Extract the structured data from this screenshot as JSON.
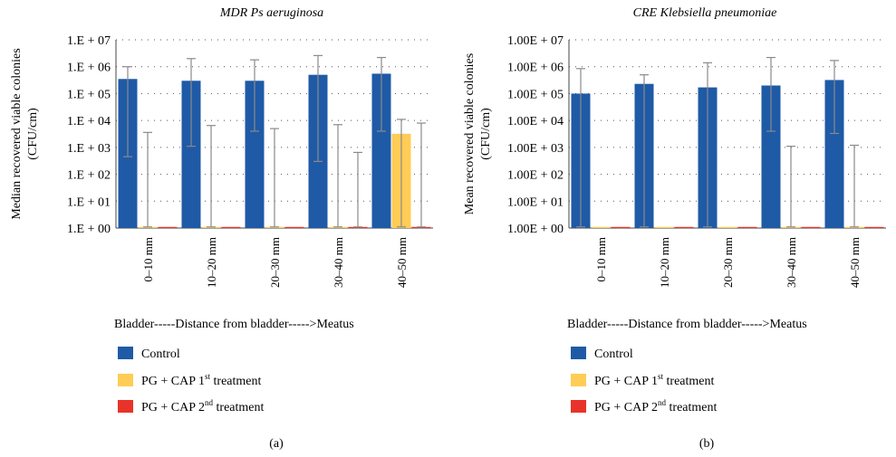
{
  "colors": {
    "control": "#1f5aa6",
    "first": "#ffcc55",
    "second": "#e8332a"
  },
  "legend": {
    "control": "Control",
    "first": {
      "text": "PG + CAP 1",
      "sup": "st",
      "suffix": " treatment"
    },
    "second": {
      "text": "PG + CAP 2",
      "sup": "nd",
      "suffix": " treatment"
    }
  },
  "chart_data": [
    {
      "type": "bar",
      "panel_label": "(a)",
      "title": "MDR Ps aeruginosa",
      "ylabel": [
        "Median recovered viable colonies",
        "(CFU/cm)"
      ],
      "xlabel": "Bladder-----Distance from bladder----->Meatus",
      "y_scale": "log",
      "ylim": [
        1,
        10000000
      ],
      "y_ticks": [
        {
          "value": 1,
          "label": "1.E + 00"
        },
        {
          "value": 10,
          "label": "1.E + 01"
        },
        {
          "value": 100,
          "label": "1.E + 02"
        },
        {
          "value": 1000,
          "label": "1.E + 03"
        },
        {
          "value": 10000,
          "label": "1.E + 04"
        },
        {
          "value": 100000,
          "label": "1.E + 05"
        },
        {
          "value": 1000000,
          "label": "1.E + 06"
        },
        {
          "value": 10000000,
          "label": "1.E + 07"
        }
      ],
      "grid": true,
      "categories": [
        "0–10 mm",
        "10–20 mm",
        "20–30 mm",
        "30–40 mm",
        "40–50 mm"
      ],
      "series": [
        {
          "key": "control",
          "values": [
            350000,
            300000,
            300000,
            500000,
            550000
          ],
          "err_low": [
            450,
            1100,
            4000,
            300,
            4000
          ],
          "err_high": [
            1000000,
            2000000,
            1800000,
            2600000,
            2200000
          ]
        },
        {
          "key": "first",
          "values": [
            1.1,
            1.1,
            1.1,
            1.1,
            3200
          ],
          "err_low": [
            1.1,
            1.1,
            1.1,
            1.1,
            1.1
          ],
          "err_high": [
            3600,
            6500,
            5000,
            7000,
            11000
          ]
        },
        {
          "key": "second",
          "values": [
            1.1,
            1.1,
            1.1,
            1.1,
            1.1
          ],
          "err_low": [
            1.1,
            1.1,
            1.1,
            1.1,
            1.1
          ],
          "err_high": [
            1.1,
            1.1,
            1.1,
            650,
            8000
          ]
        }
      ]
    },
    {
      "type": "bar",
      "panel_label": "(b)",
      "title": "CRE Klebsiella pneumoniae",
      "ylabel": [
        "Mean recovered viable colonies",
        "(CFU/cm)"
      ],
      "xlabel": "Bladder-----Distance from bladder----->Meatus",
      "y_scale": "log",
      "ylim": [
        1,
        10000000
      ],
      "y_ticks": [
        {
          "value": 1,
          "label": "1.00E + 00"
        },
        {
          "value": 10,
          "label": "1.00E + 01"
        },
        {
          "value": 100,
          "label": "1.00E + 02"
        },
        {
          "value": 1000,
          "label": "1.00E + 03"
        },
        {
          "value": 10000,
          "label": "1.00E + 04"
        },
        {
          "value": 100000,
          "label": "1.00E + 05"
        },
        {
          "value": 1000000,
          "label": "1.00E + 06"
        },
        {
          "value": 10000000,
          "label": "1.00E + 07"
        }
      ],
      "grid": true,
      "categories": [
        "0–10 mm",
        "10–20 mm",
        "20–30 mm",
        "30–40 mm",
        "40–50 mm"
      ],
      "series": [
        {
          "key": "control",
          "values": [
            100000,
            230000,
            170000,
            200000,
            320000
          ],
          "err_low": [
            1.1,
            1.1,
            1.1,
            4000,
            3300
          ],
          "err_high": [
            850000,
            500000,
            1400000,
            2200000,
            1700000
          ]
        },
        {
          "key": "first",
          "values": [
            1.1,
            1.1,
            1.1,
            1.1,
            1.1
          ],
          "err_low": [
            1.1,
            1.1,
            1.1,
            1.1,
            1.1
          ],
          "err_high": [
            1.1,
            1.1,
            1.1,
            1100,
            1200
          ]
        },
        {
          "key": "second",
          "values": [
            1.1,
            1.1,
            1.1,
            1.1,
            1.1
          ],
          "err_low": [
            1.1,
            1.1,
            1.1,
            1.1,
            1.1
          ],
          "err_high": [
            1.1,
            1.1,
            1.1,
            1.1,
            1.1
          ]
        }
      ]
    }
  ]
}
